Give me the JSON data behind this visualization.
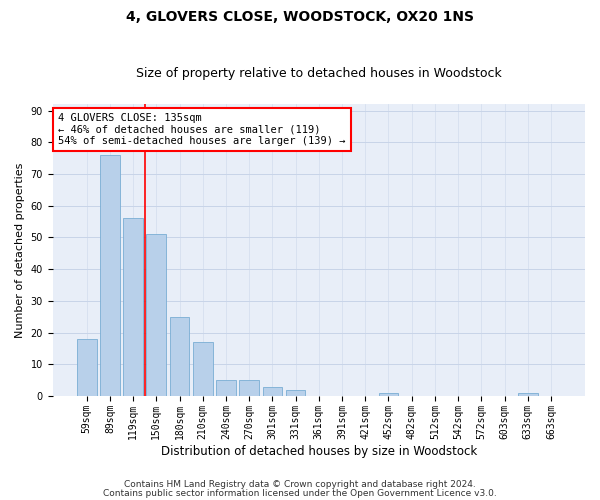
{
  "title": "4, GLOVERS CLOSE, WOODSTOCK, OX20 1NS",
  "subtitle": "Size of property relative to detached houses in Woodstock",
  "xlabel": "Distribution of detached houses by size in Woodstock",
  "ylabel": "Number of detached properties",
  "bar_labels": [
    "59sqm",
    "89sqm",
    "119sqm",
    "150sqm",
    "180sqm",
    "210sqm",
    "240sqm",
    "270sqm",
    "301sqm",
    "331sqm",
    "361sqm",
    "391sqm",
    "421sqm",
    "452sqm",
    "482sqm",
    "512sqm",
    "542sqm",
    "572sqm",
    "603sqm",
    "633sqm",
    "663sqm"
  ],
  "bar_values": [
    18,
    76,
    56,
    51,
    25,
    17,
    5,
    5,
    3,
    2,
    0,
    0,
    0,
    1,
    0,
    0,
    0,
    0,
    0,
    1,
    0
  ],
  "bar_color": "#b8d0ea",
  "bar_edge_color": "#7aadd4",
  "vline_x": 2.5,
  "vline_color": "red",
  "annotation_text": "4 GLOVERS CLOSE: 135sqm\n← 46% of detached houses are smaller (119)\n54% of semi-detached houses are larger (139) →",
  "annotation_box_color": "white",
  "annotation_box_edge_color": "red",
  "ylim": [
    0,
    92
  ],
  "yticks": [
    0,
    10,
    20,
    30,
    40,
    50,
    60,
    70,
    80,
    90
  ],
  "grid_color": "#c8d4e8",
  "background_color": "#e8eef8",
  "footer1": "Contains HM Land Registry data © Crown copyright and database right 2024.",
  "footer2": "Contains public sector information licensed under the Open Government Licence v3.0.",
  "title_fontsize": 10,
  "subtitle_fontsize": 9,
  "xlabel_fontsize": 8.5,
  "ylabel_fontsize": 8,
  "tick_fontsize": 7,
  "annotation_fontsize": 7.5,
  "footer_fontsize": 6.5
}
